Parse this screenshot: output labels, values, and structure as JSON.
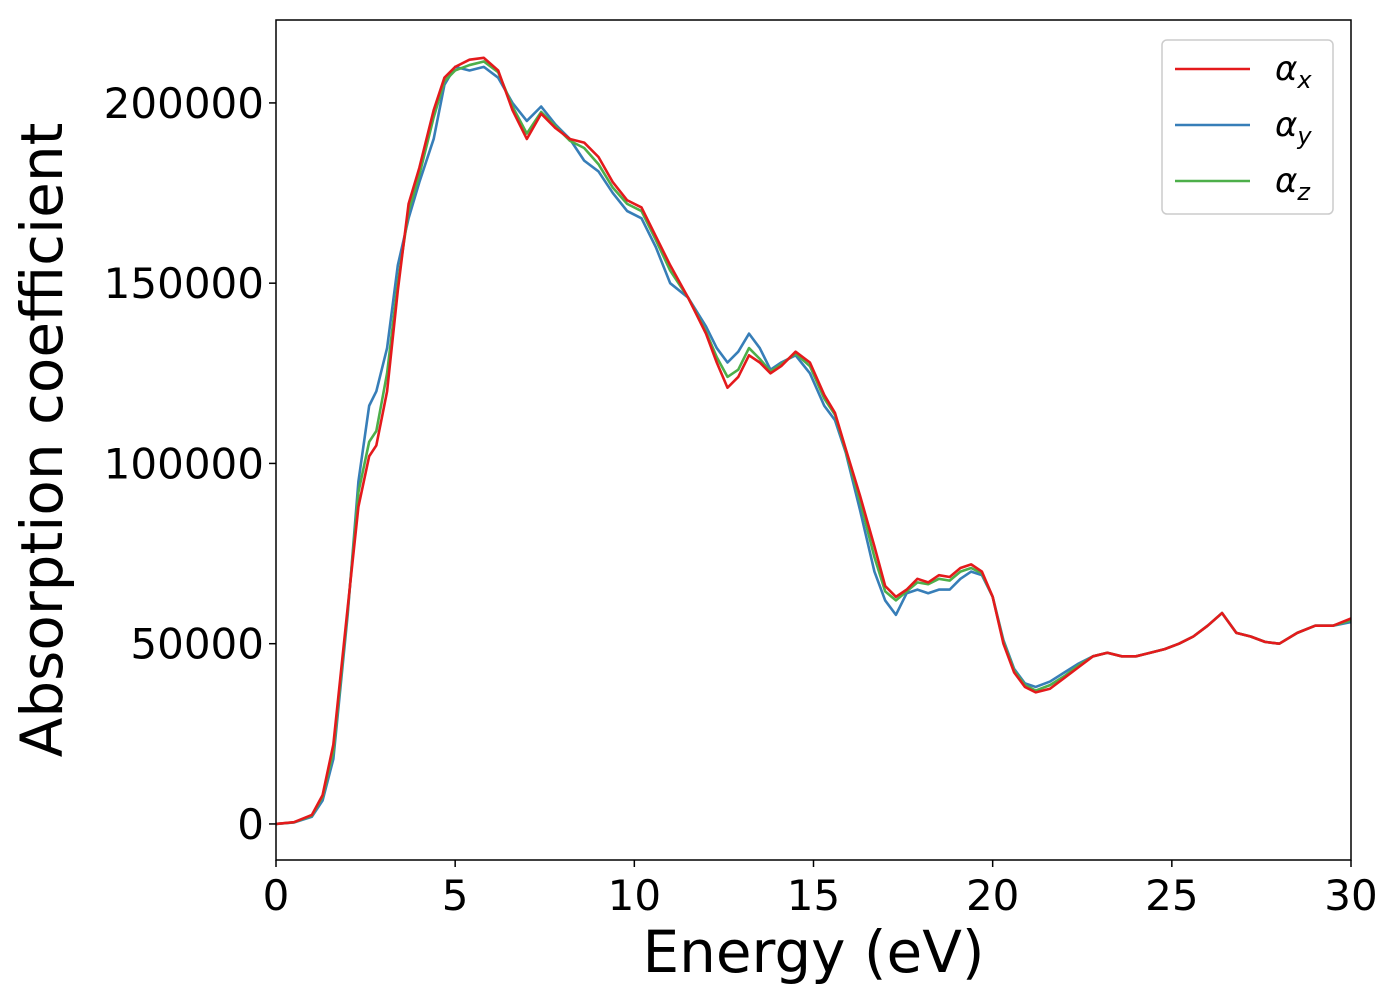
{
  "chart_data": {
    "type": "line",
    "xlabel": "Energy (eV)",
    "ylabel": "Absorption coefficient",
    "xlim": [
      0,
      30
    ],
    "ylim": [
      -10000,
      223000
    ],
    "x_ticks": [
      0,
      5,
      10,
      15,
      20,
      25,
      30
    ],
    "y_ticks": [
      0,
      50000,
      100000,
      150000,
      200000
    ],
    "grid": false,
    "legend_position": "top-right",
    "colors": {
      "alpha_x": "#e41a1c",
      "alpha_y": "#377eb8",
      "alpha_z": "#4daf4a"
    },
    "series": [
      {
        "name": "α",
        "subscript": "x",
        "color": "#e41a1c",
        "x": [
          0,
          0.5,
          1,
          1.3,
          1.6,
          2,
          2.3,
          2.6,
          2.8,
          3.1,
          3.4,
          3.7,
          4,
          4.4,
          4.7,
          5,
          5.4,
          5.8,
          6.2,
          6.6,
          7,
          7.4,
          7.8,
          8.2,
          8.6,
          9,
          9.4,
          9.8,
          10.2,
          10.6,
          11,
          11.5,
          12,
          12.3,
          12.6,
          12.9,
          13.2,
          13.5,
          13.8,
          14.1,
          14.5,
          14.9,
          15.3,
          15.6,
          15.9,
          16.3,
          16.7,
          17,
          17.3,
          17.6,
          17.9,
          18.2,
          18.5,
          18.8,
          19.1,
          19.4,
          19.7,
          20,
          20.3,
          20.6,
          20.9,
          21.2,
          21.6,
          22,
          22.4,
          22.8,
          23.2,
          23.6,
          24,
          24.4,
          24.8,
          25.2,
          25.6,
          26,
          26.4,
          26.8,
          27.2,
          27.6,
          28,
          28.5,
          29,
          29.5,
          30
        ],
        "y": [
          0,
          500,
          2500,
          8000,
          22000,
          60000,
          88000,
          102000,
          105000,
          120000,
          148000,
          172000,
          182000,
          198000,
          207000,
          210000,
          212000,
          212500,
          209000,
          198000,
          190000,
          197000,
          193000,
          190000,
          189000,
          185000,
          178000,
          173000,
          171000,
          163000,
          155000,
          146000,
          136000,
          128000,
          121000,
          124000,
          130000,
          128000,
          125000,
          127000,
          131000,
          128000,
          119000,
          114000,
          104000,
          91000,
          77000,
          66000,
          63000,
          65000,
          68000,
          67000,
          69000,
          68500,
          71000,
          72000,
          70000,
          63000,
          50000,
          42000,
          38000,
          36500,
          37500,
          40500,
          43500,
          46500,
          47500,
          46500,
          46500,
          47500,
          48500,
          50000,
          52000,
          55000,
          58500,
          53000,
          52000,
          50500,
          50000,
          53000,
          55000,
          55000,
          57000
        ]
      },
      {
        "name": "α",
        "subscript": "y",
        "color": "#377eb8",
        "x": [
          0,
          0.5,
          1,
          1.3,
          1.6,
          2,
          2.3,
          2.6,
          2.8,
          3.1,
          3.4,
          3.7,
          4,
          4.4,
          4.7,
          5,
          5.4,
          5.8,
          6.2,
          6.6,
          7,
          7.4,
          7.8,
          8.2,
          8.6,
          9,
          9.4,
          9.8,
          10.2,
          10.6,
          11,
          11.5,
          12,
          12.3,
          12.6,
          12.9,
          13.2,
          13.5,
          13.8,
          14.1,
          14.5,
          14.9,
          15.3,
          15.6,
          15.9,
          16.3,
          16.7,
          17,
          17.3,
          17.6,
          17.9,
          18.2,
          18.5,
          18.8,
          19.1,
          19.4,
          19.7,
          20,
          20.3,
          20.6,
          20.9,
          21.2,
          21.6,
          22,
          22.4,
          22.8,
          23.2,
          23.6,
          24,
          24.4,
          24.8,
          25.2,
          25.6,
          26,
          26.4,
          26.8,
          27.2,
          27.6,
          28,
          28.5,
          29,
          29.5,
          30
        ],
        "y": [
          0,
          400,
          2000,
          6500,
          18000,
          58000,
          95000,
          116000,
          120000,
          132000,
          155000,
          168000,
          178000,
          190000,
          205000,
          210000,
          209000,
          210000,
          207000,
          200000,
          195000,
          199000,
          194000,
          190000,
          184000,
          181000,
          175000,
          170000,
          168000,
          160000,
          150000,
          146000,
          138000,
          132000,
          128000,
          131000,
          136000,
          132000,
          126000,
          128000,
          130000,
          125000,
          116000,
          112000,
          103000,
          87000,
          70000,
          62000,
          58000,
          64000,
          65000,
          64000,
          65000,
          65000,
          68000,
          70000,
          69000,
          63000,
          51000,
          43000,
          39000,
          38000,
          39500,
          42000,
          44500,
          46500,
          47500,
          46500,
          46500,
          47500,
          48500,
          50000,
          52000,
          55000,
          58500,
          53000,
          52000,
          50500,
          50000,
          53000,
          55000,
          55000,
          56000
        ]
      },
      {
        "name": "α",
        "subscript": "z",
        "color": "#4daf4a",
        "x": [
          0,
          0.5,
          1,
          1.3,
          1.6,
          2,
          2.3,
          2.6,
          2.8,
          3.1,
          3.4,
          3.7,
          4,
          4.4,
          4.7,
          5,
          5.4,
          5.8,
          6.2,
          6.6,
          7,
          7.4,
          7.8,
          8.2,
          8.6,
          9,
          9.4,
          9.8,
          10.2,
          10.6,
          11,
          11.5,
          12,
          12.3,
          12.6,
          12.9,
          13.2,
          13.5,
          13.8,
          14.1,
          14.5,
          14.9,
          15.3,
          15.6,
          15.9,
          16.3,
          16.7,
          17,
          17.3,
          17.6,
          17.9,
          18.2,
          18.5,
          18.8,
          19.1,
          19.4,
          19.7,
          20,
          20.3,
          20.6,
          20.9,
          21.2,
          21.6,
          22,
          22.4,
          22.8,
          23.2,
          23.6,
          24,
          24.4,
          24.8,
          25.2,
          25.6,
          26,
          26.4,
          26.8,
          27.2,
          27.6,
          28,
          28.5,
          29,
          29.5,
          30
        ],
        "y": [
          0,
          450,
          2300,
          7500,
          20000,
          59000,
          92000,
          106000,
          109000,
          125000,
          150000,
          170000,
          180000,
          196000,
          206000,
          209000,
          210500,
          211500,
          208500,
          199000,
          191500,
          197500,
          193500,
          189500,
          187500,
          183000,
          176500,
          172000,
          170000,
          162000,
          153500,
          146000,
          136500,
          129500,
          124000,
          126000,
          132000,
          129000,
          125500,
          127500,
          130500,
          127000,
          118000,
          113500,
          103500,
          89500,
          74000,
          64500,
          62000,
          64500,
          67000,
          66500,
          68000,
          67500,
          70000,
          71000,
          69500,
          63000,
          50500,
          42500,
          38500,
          37000,
          38500,
          41000,
          44000,
          46500,
          47500,
          46500,
          46500,
          47500,
          48500,
          50000,
          52000,
          55000,
          58500,
          53000,
          52000,
          50500,
          50000,
          53000,
          55000,
          55000,
          56500
        ]
      }
    ]
  }
}
